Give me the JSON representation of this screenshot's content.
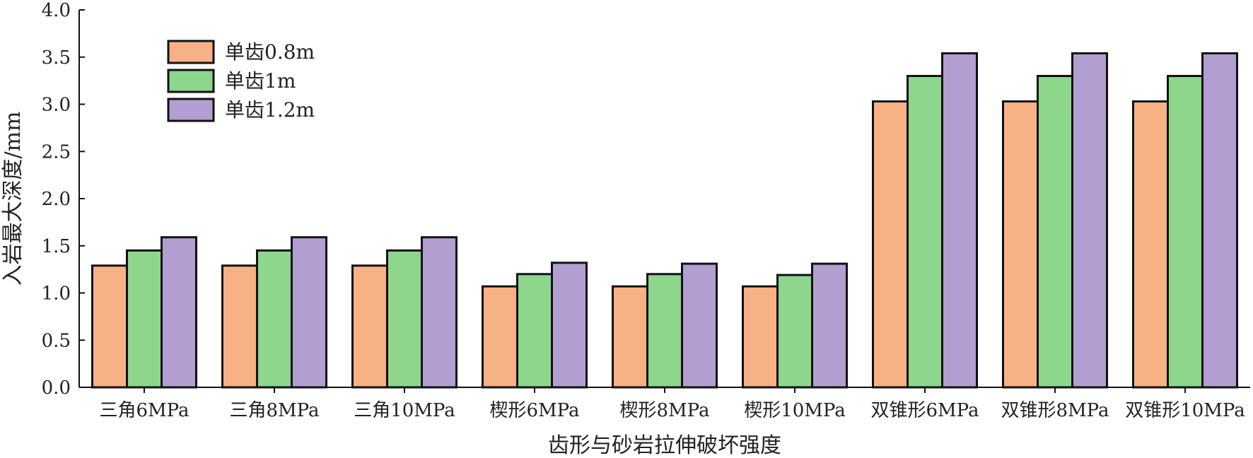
{
  "chart_data": {
    "type": "bar",
    "title": "",
    "xlabel": "齿形与砂岩拉伸破坏强度",
    "ylabel": "入岩最大深度/mm",
    "ylim": [
      0,
      4.0
    ],
    "yticks": [
      "0.0",
      "0.5",
      "1.0",
      "1.5",
      "2.0",
      "2.5",
      "3.0",
      "3.5",
      "4.0"
    ],
    "categories": [
      "三角6MPa",
      "三角8MPa",
      "三角10MPa",
      "楔形6MPa",
      "楔形8MPa",
      "楔形10MPa",
      "双锥形6MPa",
      "双锥形8MPa",
      "双锥形10MPa"
    ],
    "series": [
      {
        "name": "单齿0.8m",
        "color": "#f8b185",
        "values": [
          1.29,
          1.29,
          1.29,
          1.07,
          1.07,
          1.07,
          3.03,
          3.03,
          3.03
        ]
      },
      {
        "name": "单齿1m",
        "color": "#8dd68c",
        "values": [
          1.45,
          1.45,
          1.45,
          1.2,
          1.2,
          1.19,
          3.3,
          3.3,
          3.3
        ]
      },
      {
        "name": "单齿1.2m",
        "color": "#b39ed1",
        "values": [
          1.59,
          1.59,
          1.59,
          1.32,
          1.31,
          1.31,
          3.54,
          3.54,
          3.54
        ]
      }
    ],
    "grid": false,
    "legend_position": "top-left"
  }
}
